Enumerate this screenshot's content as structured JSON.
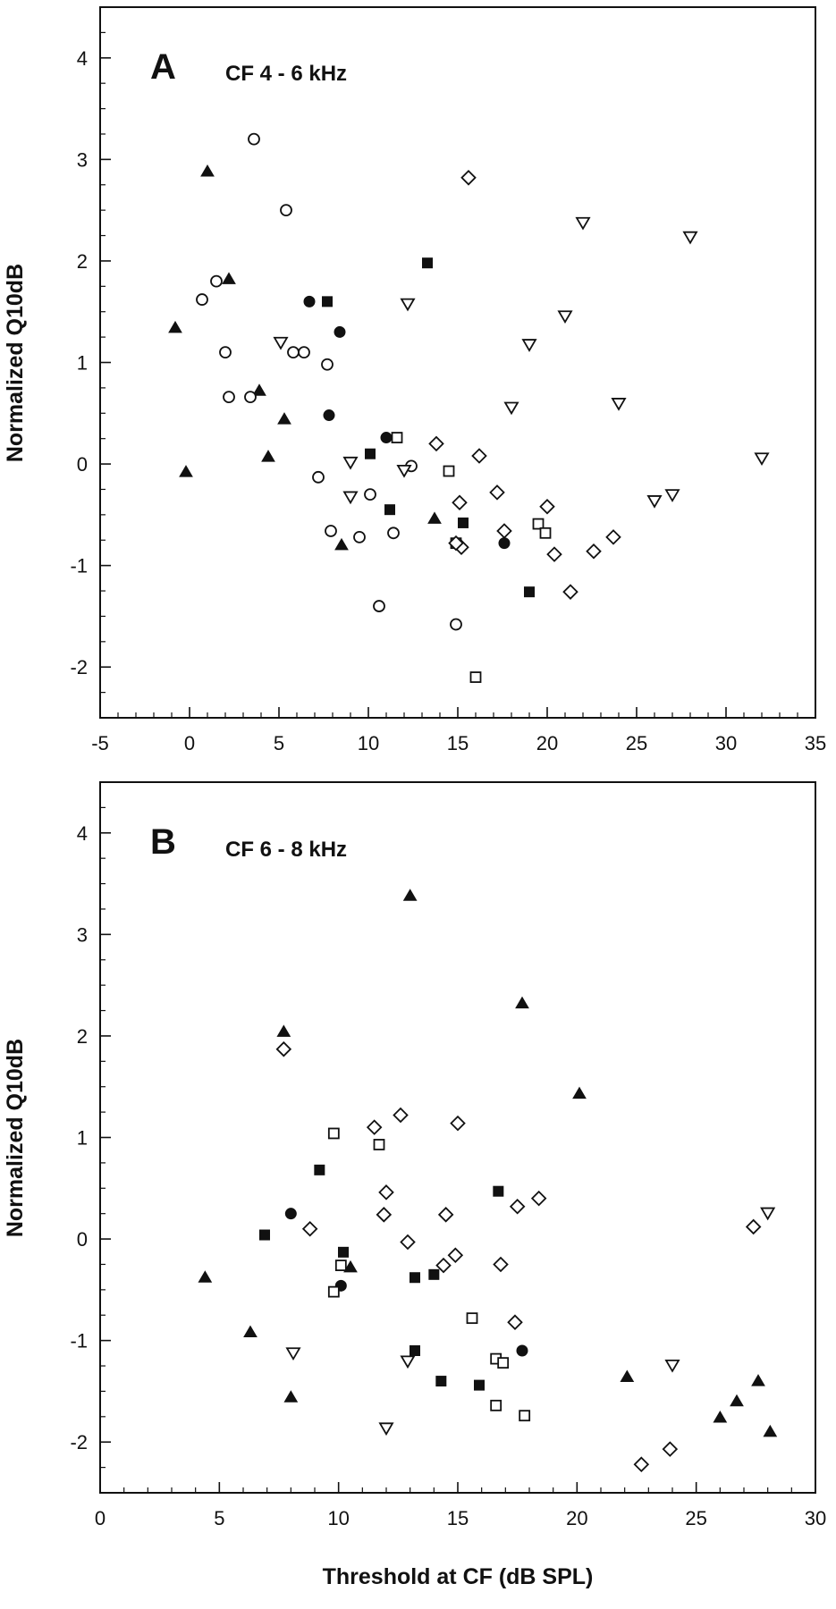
{
  "chart_data": [
    {
      "type": "scatter",
      "panel_label": "A",
      "title": "CF 4 - 6 kHz",
      "ylabel": "Normalized Q10dB",
      "xlabel": "",
      "xlim": [
        -5,
        35
      ],
      "ylim": [
        -2.5,
        4.5
      ],
      "xticks": [
        -5,
        0,
        5,
        10,
        15,
        20,
        25,
        30,
        35
      ],
      "yticks": [
        -2,
        -1,
        0,
        1,
        2,
        3,
        4
      ],
      "series": [
        {
          "marker": "filled-triangle",
          "points": [
            [
              1.0,
              2.88
            ],
            [
              2.2,
              1.82
            ],
            [
              -0.8,
              1.34
            ],
            [
              3.9,
              0.72
            ],
            [
              5.3,
              0.44
            ],
            [
              4.4,
              0.07
            ],
            [
              -0.2,
              -0.08
            ],
            [
              8.5,
              -0.8
            ],
            [
              13.7,
              -0.54
            ]
          ]
        },
        {
          "marker": "open-circle",
          "points": [
            [
              3.6,
              3.2
            ],
            [
              5.4,
              2.5
            ],
            [
              1.5,
              1.8
            ],
            [
              0.7,
              1.62
            ],
            [
              2.0,
              1.1
            ],
            [
              5.8,
              1.1
            ],
            [
              6.4,
              1.1
            ],
            [
              7.7,
              0.98
            ],
            [
              2.2,
              0.66
            ],
            [
              3.4,
              0.66
            ],
            [
              7.2,
              -0.13
            ],
            [
              10.1,
              -0.3
            ],
            [
              12.4,
              -0.02
            ],
            [
              7.9,
              -0.66
            ],
            [
              9.5,
              -0.72
            ],
            [
              11.4,
              -0.68
            ],
            [
              10.6,
              -1.4
            ],
            [
              14.9,
              -1.58
            ]
          ]
        },
        {
          "marker": "filled-circle",
          "points": [
            [
              6.7,
              1.6
            ],
            [
              8.4,
              1.3
            ],
            [
              7.8,
              0.48
            ],
            [
              11.0,
              0.26
            ],
            [
              17.6,
              -0.78
            ]
          ]
        },
        {
          "marker": "filled-square",
          "points": [
            [
              13.3,
              1.98
            ],
            [
              7.7,
              1.6
            ],
            [
              10.1,
              0.1
            ],
            [
              11.2,
              -0.45
            ],
            [
              15.3,
              -0.58
            ],
            [
              19.0,
              -1.26
            ]
          ]
        },
        {
          "marker": "open-square",
          "points": [
            [
              11.6,
              0.26
            ],
            [
              14.5,
              -0.07
            ],
            [
              19.5,
              -0.59
            ],
            [
              19.9,
              -0.68
            ],
            [
              14.9,
              -0.78
            ],
            [
              16.0,
              -2.1
            ]
          ]
        },
        {
          "marker": "open-diamond",
          "points": [
            [
              15.6,
              2.82
            ],
            [
              13.8,
              0.2
            ],
            [
              16.2,
              0.08
            ],
            [
              17.2,
              -0.28
            ],
            [
              15.1,
              -0.38
            ],
            [
              20.0,
              -0.42
            ],
            [
              17.6,
              -0.66
            ],
            [
              15.2,
              -0.82
            ],
            [
              14.9,
              -0.78
            ],
            [
              23.7,
              -0.72
            ],
            [
              20.4,
              -0.89
            ],
            [
              22.6,
              -0.86
            ],
            [
              21.3,
              -1.26
            ]
          ]
        },
        {
          "marker": "open-triangle-down",
          "points": [
            [
              22.0,
              2.38
            ],
            [
              28.0,
              2.24
            ],
            [
              12.2,
              1.58
            ],
            [
              21.0,
              1.46
            ],
            [
              5.1,
              1.2
            ],
            [
              19.0,
              1.18
            ],
            [
              24.0,
              0.6
            ],
            [
              18.0,
              0.56
            ],
            [
              9.0,
              0.02
            ],
            [
              12.0,
              -0.06
            ],
            [
              9.0,
              -0.32
            ],
            [
              32.0,
              0.06
            ],
            [
              27.0,
              -0.3
            ],
            [
              26.0,
              -0.36
            ]
          ]
        }
      ]
    },
    {
      "type": "scatter",
      "panel_label": "B",
      "title": "CF 6 - 8 kHz",
      "ylabel": "Normalized Q10dB",
      "xlabel": "Threshold at CF (dB SPL)",
      "xlim": [
        0,
        30
      ],
      "ylim": [
        -2.5,
        4.5
      ],
      "xticks": [
        0,
        5,
        10,
        15,
        20,
        25,
        30
      ],
      "yticks": [
        -2,
        -1,
        0,
        1,
        2,
        3,
        4
      ],
      "series": [
        {
          "marker": "filled-triangle",
          "points": [
            [
              13.0,
              3.38
            ],
            [
              7.7,
              2.04
            ],
            [
              17.7,
              2.32
            ],
            [
              20.1,
              1.43
            ],
            [
              4.4,
              -0.38
            ],
            [
              10.5,
              -0.28
            ],
            [
              6.3,
              -0.92
            ],
            [
              8.0,
              -1.56
            ],
            [
              22.1,
              -1.36
            ],
            [
              26.0,
              -1.76
            ],
            [
              26.7,
              -1.6
            ],
            [
              27.6,
              -1.4
            ],
            [
              28.1,
              -1.9
            ]
          ]
        },
        {
          "marker": "filled-circle",
          "points": [
            [
              8.0,
              0.25
            ],
            [
              10.1,
              -0.46
            ],
            [
              17.7,
              -1.1
            ]
          ]
        },
        {
          "marker": "filled-square",
          "points": [
            [
              9.2,
              0.68
            ],
            [
              6.9,
              0.04
            ],
            [
              16.7,
              0.47
            ],
            [
              10.2,
              -0.13
            ],
            [
              13.2,
              -0.38
            ],
            [
              14.0,
              -0.35
            ],
            [
              13.2,
              -1.1
            ],
            [
              14.3,
              -1.4
            ],
            [
              15.9,
              -1.44
            ]
          ]
        },
        {
          "marker": "open-square",
          "points": [
            [
              9.8,
              1.04
            ],
            [
              11.7,
              0.93
            ],
            [
              10.1,
              -0.26
            ],
            [
              9.8,
              -0.52
            ],
            [
              15.6,
              -0.78
            ],
            [
              16.6,
              -1.18
            ],
            [
              16.9,
              -1.22
            ],
            [
              16.6,
              -1.64
            ],
            [
              17.8,
              -1.74
            ]
          ]
        },
        {
          "marker": "open-diamond",
          "points": [
            [
              7.7,
              1.87
            ],
            [
              12.6,
              1.22
            ],
            [
              15.0,
              1.14
            ],
            [
              11.5,
              1.1
            ],
            [
              12.0,
              0.46
            ],
            [
              18.4,
              0.4
            ],
            [
              17.5,
              0.32
            ],
            [
              8.8,
              0.1
            ],
            [
              11.9,
              0.24
            ],
            [
              14.5,
              0.24
            ],
            [
              12.9,
              -0.03
            ],
            [
              14.9,
              -0.16
            ],
            [
              14.4,
              -0.26
            ],
            [
              16.8,
              -0.25
            ],
            [
              17.4,
              -0.82
            ],
            [
              22.7,
              -2.22
            ],
            [
              23.9,
              -2.07
            ],
            [
              27.4,
              0.12
            ]
          ]
        },
        {
          "marker": "open-triangle-down",
          "points": [
            [
              28.0,
              0.26
            ],
            [
              8.1,
              -1.12
            ],
            [
              12.9,
              -1.2
            ],
            [
              24.0,
              -1.24
            ],
            [
              12.0,
              -1.86
            ]
          ]
        }
      ]
    }
  ]
}
